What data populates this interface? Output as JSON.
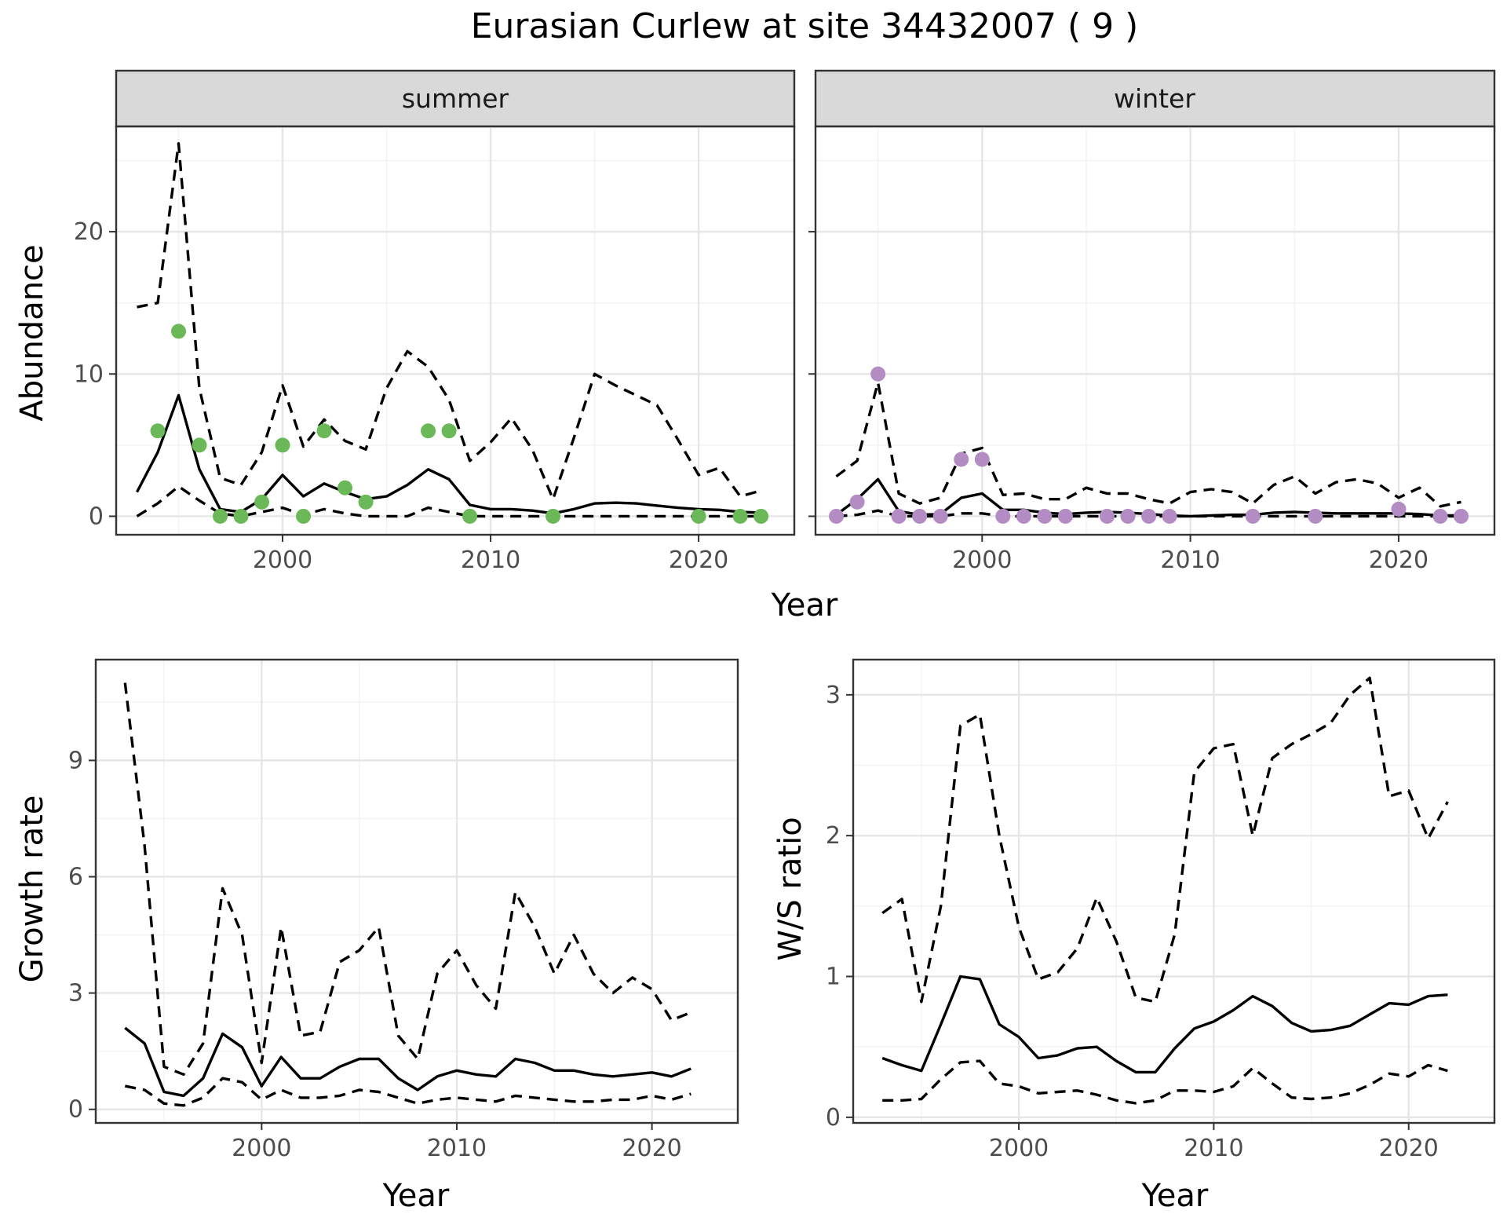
{
  "title": "Eurasian Curlew at site 34432007 ( 9 )",
  "colors": {
    "summer_points": "#6ab858",
    "winter_points": "#b38cc4",
    "lines": "#000000"
  },
  "chart_data": [
    {
      "id": "abundance_summer",
      "type": "line",
      "facet": "summer",
      "xlabel": "Year",
      "ylabel": "Abundance",
      "xlim": [
        1992,
        2024.6
      ],
      "ylim": [
        -1.3,
        27.4
      ],
      "xticks": [
        2000,
        2010,
        2020
      ],
      "yticks": [
        0,
        10,
        20
      ],
      "grid": true,
      "x": [
        1993,
        1994,
        1995,
        1996,
        1997,
        1998,
        1999,
        2000,
        2001,
        2002,
        2003,
        2004,
        2005,
        2006,
        2007,
        2008,
        2009,
        2010,
        2011,
        2012,
        2013,
        2014,
        2015,
        2016,
        2017,
        2018,
        2019,
        2020,
        2021,
        2022,
        2023
      ],
      "estimate": [
        1.7,
        4.5,
        8.5,
        3.3,
        0.5,
        0.3,
        1.2,
        2.9,
        1.4,
        2.3,
        1.7,
        1.2,
        1.4,
        2.2,
        3.3,
        2.6,
        0.8,
        0.5,
        0.5,
        0.4,
        0.2,
        0.5,
        0.9,
        0.95,
        0.9,
        0.75,
        0.6,
        0.5,
        0.45,
        0.3,
        0.25
      ],
      "upper": [
        14.7,
        15.0,
        26.2,
        9.0,
        2.7,
        2.2,
        4.5,
        9.2,
        4.9,
        6.8,
        5.3,
        4.7,
        9.0,
        11.6,
        10.5,
        8.2,
        3.9,
        5.2,
        6.9,
        4.7,
        1.2,
        5.5,
        10.0,
        9.2,
        8.5,
        7.8,
        5.4,
        2.9,
        3.4,
        1.4,
        1.8
      ],
      "lower": [
        0,
        0.9,
        2.1,
        1.1,
        0.2,
        0,
        0.3,
        0.6,
        0.1,
        0.5,
        0.2,
        0,
        0,
        0,
        0.6,
        0.3,
        0,
        0,
        0,
        0,
        0,
        0,
        0,
        0,
        0,
        0,
        0,
        0,
        0,
        0,
        0
      ],
      "points": {
        "x": [
          1994,
          1995,
          1996,
          1997,
          1998,
          1999,
          2000,
          2001,
          2002,
          2003,
          2004,
          2007,
          2008,
          2009,
          2013,
          2020,
          2022,
          2023
        ],
        "y": [
          6,
          13,
          5,
          0,
          0,
          1,
          5,
          0,
          6,
          2,
          1,
          6,
          6,
          0,
          0,
          0,
          0,
          0
        ]
      }
    },
    {
      "id": "abundance_winter",
      "type": "line",
      "facet": "winter",
      "xlabel": "Year",
      "ylabel": "Abundance",
      "xlim": [
        1992,
        2024.6
      ],
      "ylim": [
        -1.3,
        27.4
      ],
      "xticks": [
        2000,
        2010,
        2020
      ],
      "yticks": [
        0,
        10,
        20
      ],
      "grid": true,
      "x": [
        1993,
        1994,
        1995,
        1996,
        1997,
        1998,
        1999,
        2000,
        2001,
        2002,
        2003,
        2004,
        2005,
        2006,
        2007,
        2008,
        2009,
        2010,
        2011,
        2012,
        2013,
        2014,
        2015,
        2016,
        2017,
        2018,
        2019,
        2020,
        2021,
        2022,
        2023
      ],
      "estimate": [
        0.1,
        1.2,
        2.6,
        0.35,
        0.1,
        0.15,
        1.3,
        1.6,
        0.45,
        0.45,
        0.25,
        0.15,
        0.25,
        0.3,
        0.25,
        0.15,
        0.05,
        0,
        0.05,
        0.1,
        0.1,
        0.25,
        0.3,
        0.25,
        0.2,
        0.2,
        0.2,
        0.2,
        0.15,
        0.05,
        0.05
      ],
      "upper": [
        2.8,
        3.9,
        9.4,
        1.6,
        0.9,
        1.3,
        4.4,
        4.8,
        1.5,
        1.6,
        1.2,
        1.2,
        2.0,
        1.6,
        1.6,
        1.2,
        0.9,
        1.7,
        1.9,
        1.7,
        0.9,
        2.2,
        2.8,
        1.6,
        2.4,
        2.6,
        2.3,
        1.3,
        2.0,
        0.7,
        1.0
      ],
      "lower": [
        0,
        0.1,
        0.4,
        0,
        0,
        0,
        0.2,
        0.2,
        0,
        0,
        0,
        0,
        0,
        0,
        0,
        0,
        0,
        0,
        0,
        0,
        0,
        0,
        0,
        0,
        0,
        0,
        0,
        0,
        0,
        0,
        0
      ],
      "points": {
        "x": [
          1993,
          1994,
          1995,
          1996,
          1997,
          1998,
          1999,
          2000,
          2001,
          2002,
          2003,
          2004,
          2006,
          2007,
          2008,
          2009,
          2013,
          2016,
          2020,
          2022,
          2023
        ],
        "y": [
          0,
          1,
          10,
          0,
          0,
          0,
          4,
          4,
          0,
          0,
          0,
          0,
          0,
          0,
          0,
          0,
          0,
          0,
          0.5,
          0,
          0
        ]
      }
    },
    {
      "id": "growth_rate",
      "type": "line",
      "xlabel": "Year",
      "ylabel": "Growth rate",
      "xlim": [
        1991.5,
        2024.4
      ],
      "ylim": [
        -0.35,
        11.6
      ],
      "xticks": [
        2000,
        2010,
        2020
      ],
      "yticks": [
        0,
        3,
        6,
        9
      ],
      "grid": true,
      "x": [
        1993,
        1994,
        1995,
        1996,
        1997,
        1998,
        1999,
        2000,
        2001,
        2002,
        2003,
        2004,
        2005,
        2006,
        2007,
        2008,
        2009,
        2010,
        2011,
        2012,
        2013,
        2014,
        2015,
        2016,
        2017,
        2018,
        2019,
        2020,
        2021,
        2022
      ],
      "estimate": [
        2.1,
        1.7,
        0.45,
        0.35,
        0.8,
        1.95,
        1.6,
        0.6,
        1.35,
        0.8,
        0.8,
        1.1,
        1.3,
        1.3,
        0.8,
        0.5,
        0.85,
        1.0,
        0.9,
        0.85,
        1.3,
        1.2,
        1.0,
        1.0,
        0.9,
        0.85,
        0.9,
        0.95,
        0.85,
        1.05
      ],
      "upper": [
        11.0,
        6.8,
        1.1,
        0.9,
        1.7,
        5.7,
        4.5,
        1.2,
        4.7,
        1.9,
        2.0,
        3.8,
        4.1,
        4.7,
        1.9,
        1.3,
        3.5,
        4.1,
        3.2,
        2.6,
        5.6,
        4.7,
        3.5,
        4.5,
        3.5,
        3.0,
        3.4,
        3.1,
        2.3,
        2.5
      ],
      "lower": [
        0.6,
        0.5,
        0.15,
        0.1,
        0.3,
        0.8,
        0.7,
        0.25,
        0.5,
        0.3,
        0.3,
        0.35,
        0.5,
        0.45,
        0.3,
        0.15,
        0.25,
        0.3,
        0.25,
        0.2,
        0.35,
        0.3,
        0.25,
        0.2,
        0.2,
        0.25,
        0.25,
        0.35,
        0.25,
        0.4
      ]
    },
    {
      "id": "ws_ratio",
      "type": "line",
      "xlabel": "Year",
      "ylabel": "W/S ratio",
      "xlim": [
        1991.5,
        2024.4
      ],
      "ylim": [
        -0.04,
        3.25
      ],
      "xticks": [
        2000,
        2010,
        2020
      ],
      "yticks": [
        0,
        1,
        2,
        3
      ],
      "grid": true,
      "x": [
        1993,
        1994,
        1995,
        1996,
        1997,
        1998,
        1999,
        2000,
        2001,
        2002,
        2003,
        2004,
        2005,
        2006,
        2007,
        2008,
        2009,
        2010,
        2011,
        2012,
        2013,
        2014,
        2015,
        2016,
        2017,
        2018,
        2019,
        2020,
        2021,
        2022
      ],
      "estimate": [
        0.42,
        0.37,
        0.33,
        0.66,
        1.0,
        0.98,
        0.66,
        0.57,
        0.42,
        0.44,
        0.49,
        0.5,
        0.4,
        0.32,
        0.32,
        0.49,
        0.63,
        0.68,
        0.76,
        0.86,
        0.79,
        0.67,
        0.61,
        0.62,
        0.65,
        0.73,
        0.81,
        0.8,
        0.86,
        0.87
      ],
      "upper": [
        1.45,
        1.55,
        0.82,
        1.5,
        2.78,
        2.86,
        2.0,
        1.35,
        0.98,
        1.03,
        1.2,
        1.56,
        1.25,
        0.85,
        0.82,
        1.3,
        2.45,
        2.62,
        2.65,
        2.0,
        2.55,
        2.65,
        2.72,
        2.8,
        3.0,
        3.12,
        2.28,
        2.32,
        1.98,
        2.24
      ],
      "lower": [
        0.12,
        0.12,
        0.13,
        0.27,
        0.39,
        0.4,
        0.24,
        0.22,
        0.17,
        0.18,
        0.19,
        0.16,
        0.12,
        0.1,
        0.12,
        0.19,
        0.19,
        0.18,
        0.22,
        0.35,
        0.24,
        0.14,
        0.13,
        0.14,
        0.17,
        0.23,
        0.31,
        0.29,
        0.37,
        0.33
      ]
    }
  ],
  "panels": {
    "summer": {
      "strip": "summer"
    },
    "winter": {
      "strip": "winter"
    },
    "top_xlabel": "Year",
    "top_ylabel": "Abundance",
    "growth_xlabel": "Year",
    "growth_ylabel": "Growth rate",
    "ratio_xlabel": "Year",
    "ratio_ylabel": "W/S ratio"
  }
}
